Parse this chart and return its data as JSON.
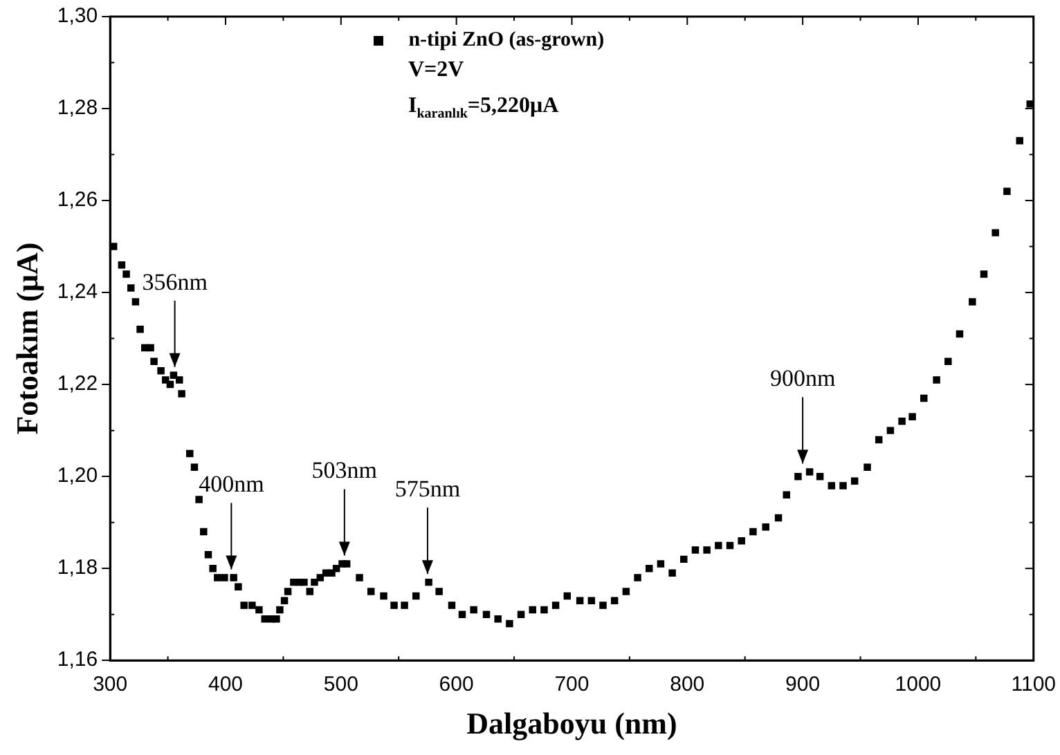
{
  "chart_data": {
    "type": "scatter",
    "xlabel": "Dalgaboyu (nm)",
    "ylabel": "Fotoakım (μA)",
    "xlim": [
      300,
      1100
    ],
    "xticks": [
      300,
      400,
      500,
      600,
      700,
      800,
      900,
      1000,
      1100
    ],
    "ylim": [
      1.16,
      1.3
    ],
    "yticks": [
      {
        "value": 1.16,
        "label": "1,16"
      },
      {
        "value": 1.18,
        "label": "1,18"
      },
      {
        "value": 1.2,
        "label": "1,20"
      },
      {
        "value": 1.22,
        "label": "1,22"
      },
      {
        "value": 1.24,
        "label": "1,24"
      },
      {
        "value": 1.26,
        "label": "1,26"
      },
      {
        "value": 1.28,
        "label": "1,28"
      },
      {
        "value": 1.3,
        "label": "1,30"
      }
    ],
    "grid": false,
    "legend": "top",
    "marker": "square",
    "series": [
      {
        "name": "n-tipi ZnO (as-grown)",
        "color": "#000000",
        "x": [
          303,
          310,
          314,
          318,
          322,
          326,
          330,
          335,
          338,
          344,
          348,
          352,
          355,
          360,
          362,
          369,
          373,
          377,
          381,
          385,
          389,
          393,
          399,
          407,
          411,
          416,
          423,
          429,
          434,
          440,
          444,
          447,
          451,
          454,
          459,
          464,
          468,
          473,
          477,
          482,
          487,
          492,
          496,
          501,
          505,
          516,
          526,
          537,
          546,
          555,
          565,
          576,
          585,
          596,
          605,
          615,
          626,
          636,
          646,
          656,
          666,
          676,
          686,
          696,
          707,
          717,
          727,
          737,
          747,
          757,
          767,
          777,
          787,
          797,
          807,
          817,
          827,
          837,
          847,
          857,
          868,
          879,
          886,
          896,
          906,
          915,
          925,
          935,
          945,
          956,
          966,
          976,
          986,
          995,
          1005,
          1016,
          1026,
          1036,
          1047,
          1057,
          1067,
          1077,
          1088,
          1097
        ],
        "values": [
          1.25,
          1.246,
          1.244,
          1.241,
          1.238,
          1.232,
          1.228,
          1.228,
          1.225,
          1.223,
          1.221,
          1.22,
          1.222,
          1.221,
          1.218,
          1.205,
          1.202,
          1.195,
          1.188,
          1.183,
          1.18,
          1.178,
          1.178,
          1.178,
          1.176,
          1.172,
          1.172,
          1.171,
          1.169,
          1.169,
          1.169,
          1.171,
          1.173,
          1.175,
          1.177,
          1.177,
          1.177,
          1.175,
          1.177,
          1.178,
          1.179,
          1.179,
          1.18,
          1.181,
          1.181,
          1.178,
          1.175,
          1.174,
          1.172,
          1.172,
          1.174,
          1.177,
          1.175,
          1.172,
          1.17,
          1.171,
          1.17,
          1.169,
          1.168,
          1.17,
          1.171,
          1.171,
          1.172,
          1.174,
          1.173,
          1.173,
          1.172,
          1.173,
          1.175,
          1.178,
          1.18,
          1.181,
          1.179,
          1.182,
          1.184,
          1.184,
          1.185,
          1.185,
          1.186,
          1.188,
          1.189,
          1.191,
          1.196,
          1.2,
          1.201,
          1.2,
          1.198,
          1.198,
          1.199,
          1.202,
          1.208,
          1.21,
          1.212,
          1.213,
          1.217,
          1.221,
          1.225,
          1.231,
          1.238,
          1.244,
          1.253,
          1.262,
          1.273,
          1.281
        ]
      }
    ],
    "annotations": [
      {
        "text": "356nm",
        "x": 356,
        "y": 1.222
      },
      {
        "text": "400nm",
        "x": 405,
        "y": 1.178
      },
      {
        "text": "503nm",
        "x": 503,
        "y": 1.181
      },
      {
        "text": "575nm",
        "x": 575,
        "y": 1.177
      },
      {
        "text": "900nm",
        "x": 900,
        "y": 1.201
      },
      "V=2V",
      "I$_{karanlık}$=5,220μA"
    ]
  }
}
